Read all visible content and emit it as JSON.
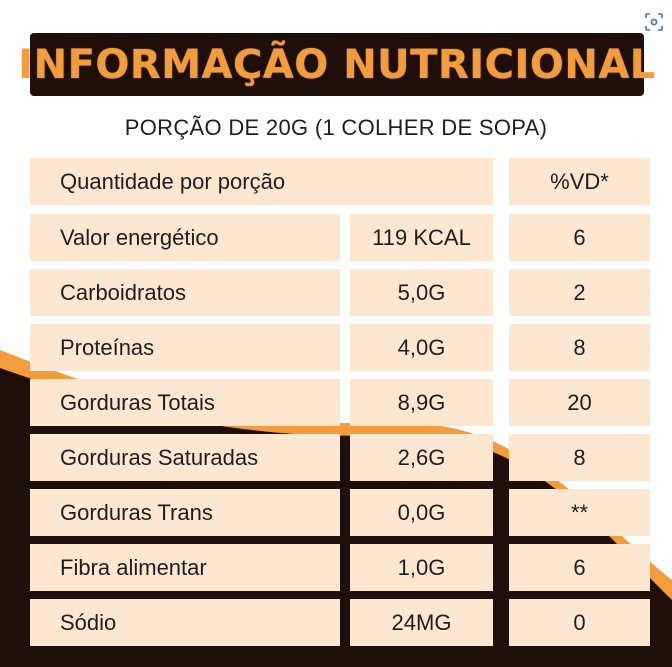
{
  "title": "INFORMAÇÃO NUTRICIONAL",
  "serving": "PORÇÃO DE 20G (1 COLHER DE SOPA)",
  "header": {
    "label": "Quantidade por porção",
    "vd": "%VD*"
  },
  "rows": [
    {
      "name": "Valor energético",
      "qty": "119 KCAL",
      "vd": "6"
    },
    {
      "name": "Carboidratos",
      "qty": "5,0G",
      "vd": "2"
    },
    {
      "name": "Proteínas",
      "qty": "4,0G",
      "vd": "8"
    },
    {
      "name": "Gorduras Totais",
      "qty": "8,9G",
      "vd": "20"
    },
    {
      "name": "Gorduras Saturadas",
      "qty": "2,6G",
      "vd": "8"
    },
    {
      "name": "Gorduras Trans",
      "qty": "0,0G",
      "vd": "**"
    },
    {
      "name": "Fibra alimentar",
      "qty": "1,0G",
      "vd": "6"
    },
    {
      "name": "Sódio",
      "qty": "24MG",
      "vd": "0"
    }
  ],
  "colors": {
    "title_bg": "#1f0f0a",
    "title_text": "#f39c3b",
    "cell_bg": "#fde7d0",
    "dark_wave": "#1f0f0a",
    "accent_wave": "#f39c3b"
  },
  "icons": {
    "lens": "lens-search-icon"
  }
}
